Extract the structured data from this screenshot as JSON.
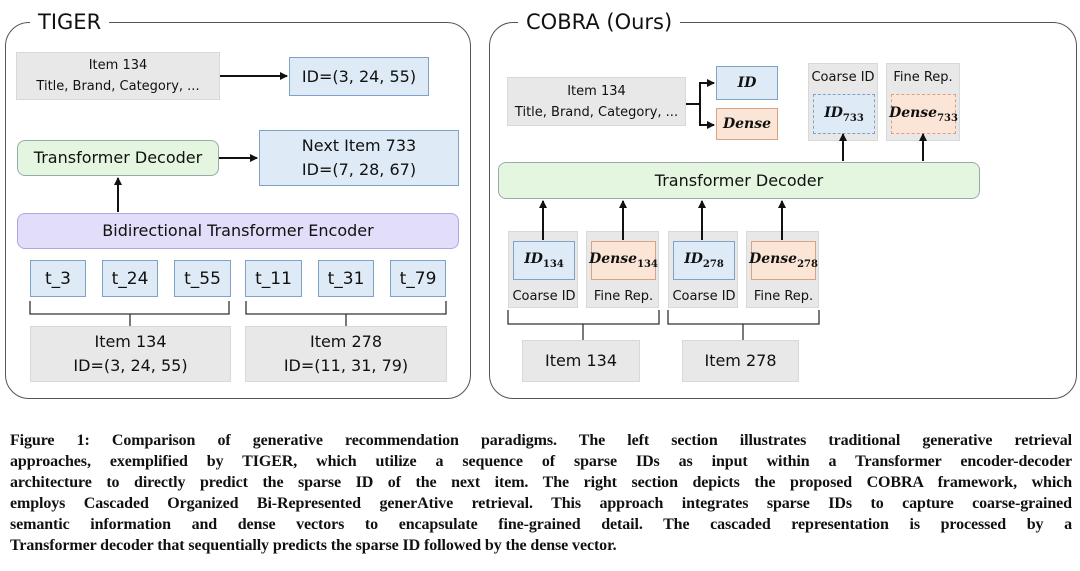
{
  "tiger": {
    "title": "TIGER",
    "item_input": {
      "line1": "Item 134",
      "line2": "Title, Brand, Category, ..."
    },
    "item_id": "ID=(3, 24, 55)",
    "decoder": "Transformer Decoder",
    "next_item": {
      "line1": "Next Item 733",
      "line2": "ID=(7, 28, 67)"
    },
    "encoder": "Bidirectional Transformer Encoder",
    "tokens": [
      "t_3",
      "t_24",
      "t_55",
      "t_11",
      "t_31",
      "t_79"
    ],
    "items": [
      {
        "line1": "Item 134",
        "line2": "ID=(3, 24, 55)"
      },
      {
        "line1": "Item 278",
        "line2": "ID=(11, 31, 79)"
      }
    ]
  },
  "cobra": {
    "title": "COBRA (Ours)",
    "item_input": {
      "line1": "Item 134",
      "line2": "Title, Brand, Category, ..."
    },
    "id_label": "ID",
    "dense_label": "Dense",
    "outputs": [
      {
        "caption": "Coarse ID",
        "label": "ID",
        "sub": "733"
      },
      {
        "caption": "Fine Rep.",
        "label": "Dense",
        "sub": "733"
      }
    ],
    "decoder": "Transformer Decoder",
    "inputs": [
      {
        "caption": "Coarse ID",
        "label": "ID",
        "sub": "134"
      },
      {
        "caption": "Fine Rep.",
        "label": "Dense",
        "sub": "134"
      },
      {
        "caption": "Coarse ID",
        "label": "ID",
        "sub": "278"
      },
      {
        "caption": "Fine Rep.",
        "label": "Dense",
        "sub": "278"
      }
    ],
    "items": [
      "Item 134",
      "Item 278"
    ]
  },
  "caption_lines": [
    "Figure 1: Comparison of generative recommendation paradigms. The left section illustrates traditional generative retrieval",
    "approaches, exemplified by TIGER, which utilize a sequence of sparse IDs as input within a Transformer encoder-decoder",
    "architecture to directly predict the sparse ID of the next item. The right section depicts the proposed COBRA framework, which",
    "employs Cascaded Organized Bi-Represented generAtive retrieval. This approach integrates sparse IDs to capture coarse-grained",
    "semantic information and dense vectors to encapsulate fine-grained detail. The cascaded representation is processed by a",
    "Transformer decoder that sequentially predicts the sparse ID followed by the dense vector."
  ],
  "colors": {
    "id_blue": "#deebf7",
    "dense_orange": "#fbe5d6",
    "decoder_green": "#e4f6e0",
    "encoder_purple": "#e2ddf8",
    "item_gray": "#e8e8e8"
  }
}
